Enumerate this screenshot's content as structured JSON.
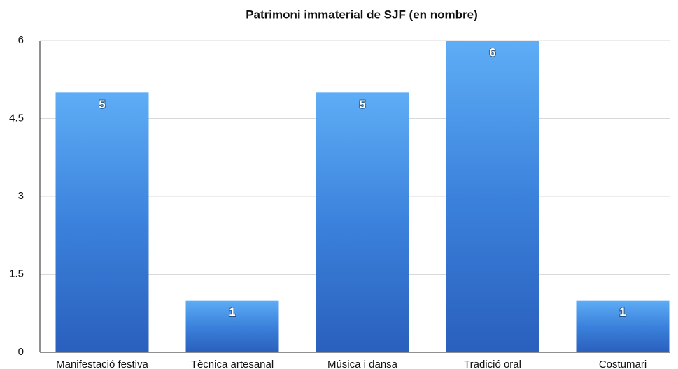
{
  "chart_data": {
    "type": "bar",
    "title": "Patrimoni immaterial de SJF (en nombre)",
    "categories": [
      "Manifestació festiva",
      "Tècnica artesanal",
      "Música i dansa",
      "Tradició oral",
      "Costumari"
    ],
    "values": [
      5,
      1,
      5,
      6,
      1
    ],
    "color": "#3b82dc",
    "ylim": [
      0,
      6
    ],
    "yticks": [
      0,
      1.5,
      3,
      4.5,
      6
    ],
    "grid": true
  }
}
